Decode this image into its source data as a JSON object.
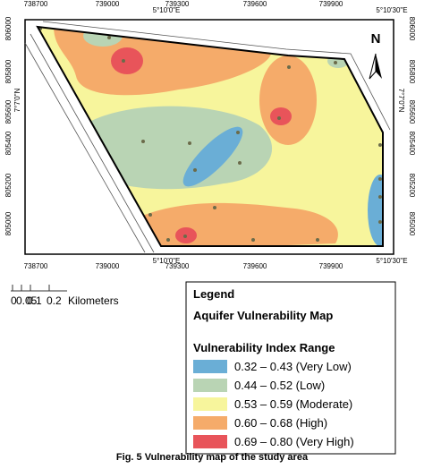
{
  "map": {
    "top_labels": [
      "738700",
      "739000",
      "5°10'0\"E",
      "739300",
      "739600",
      "739900",
      "5°10'30\"E"
    ],
    "bottom_labels": [
      "738700",
      "739000",
      "5°10'0\"E",
      "739300",
      "739600",
      "739900",
      "5°10'30\"E"
    ],
    "left_labels": [
      "806000",
      "805800",
      "7°7'0\"N",
      "805600",
      "805400",
      "805200",
      "805000"
    ],
    "right_labels": [
      "806000",
      "805800",
      "7°7'0\"N",
      "805600",
      "805400",
      "805200",
      "805000"
    ],
    "north": "N"
  },
  "scale": {
    "labels": [
      "0",
      "0.05",
      "0.1",
      "0.2"
    ],
    "unit": "Kilometers"
  },
  "legend": {
    "title": "Legend",
    "subtitle": "Aquifer Vulnerability Map",
    "heading": "Vulnerability Index Range",
    "items": [
      {
        "label": "0.32 – 0.43 (Very Low)",
        "color": "#6aaed6"
      },
      {
        "label": "0.44 – 0.52 (Low)",
        "color": "#b9d4b4"
      },
      {
        "label": "0.53 – 0.59 (Moderate)",
        "color": "#f7f59c"
      },
      {
        "label": "0.60 – 0.68 (High)",
        "color": "#f5ab6a"
      },
      {
        "label": "0.69 – 0.80 (Very High)",
        "color": "#e8545a"
      }
    ]
  },
  "caption": "Fig. 5 Vulnerability map of the study area"
}
